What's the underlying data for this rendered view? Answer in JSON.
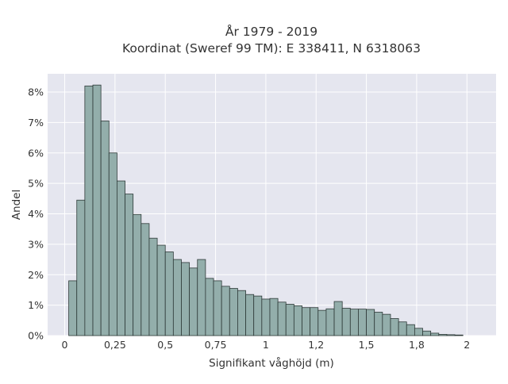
{
  "chart_data": {
    "type": "bar",
    "title_line1": "År 1979 - 2019",
    "title_line2": "Koordinat (Sweref 99 TM): E 338411, N 6318063",
    "xlabel": "Signifikant våghöjd (m)",
    "ylabel": "Andel",
    "xlim": [
      -0.085,
      2.145
    ],
    "ylim": [
      0,
      8.6
    ],
    "x_ticks": [
      {
        "value": 0,
        "label": "0"
      },
      {
        "value": 0.25,
        "label": "0,25"
      },
      {
        "value": 0.5,
        "label": "0,5"
      },
      {
        "value": 0.75,
        "label": "0,75"
      },
      {
        "value": 1,
        "label": "1"
      },
      {
        "value": 1.25,
        "label": "1,2"
      },
      {
        "value": 1.5,
        "label": "1,5"
      },
      {
        "value": 1.75,
        "label": "1,8"
      },
      {
        "value": 2,
        "label": "2"
      }
    ],
    "y_ticks": [
      {
        "value": 0,
        "label": "0%"
      },
      {
        "value": 1,
        "label": "1%"
      },
      {
        "value": 2,
        "label": "2%"
      },
      {
        "value": 3,
        "label": "3%"
      },
      {
        "value": 4,
        "label": "4%"
      },
      {
        "value": 5,
        "label": "5%"
      },
      {
        "value": 6,
        "label": "6%"
      },
      {
        "value": 7,
        "label": "7%"
      },
      {
        "value": 8,
        "label": "8%"
      }
    ],
    "bin_start": 0.02,
    "bin_width": 0.04,
    "values": [
      1.8,
      4.45,
      8.2,
      8.23,
      7.05,
      6.0,
      5.08,
      4.65,
      3.98,
      3.68,
      3.2,
      2.97,
      2.75,
      2.5,
      2.4,
      2.22,
      2.5,
      1.88,
      1.8,
      1.62,
      1.55,
      1.48,
      1.35,
      1.3,
      1.2,
      1.22,
      1.1,
      1.03,
      0.98,
      0.92,
      0.92,
      0.83,
      0.88,
      1.12,
      0.9,
      0.87,
      0.87,
      0.86,
      0.77,
      0.7,
      0.56,
      0.45,
      0.36,
      0.24,
      0.15,
      0.08,
      0.04,
      0.03,
      0.02
    ],
    "grid": true,
    "colors": {
      "plot_bg": "#e5e6ef",
      "grid": "#ffffff",
      "bar_fill": "#93aeab",
      "bar_stroke": "#2e3a38",
      "text": "#333333"
    }
  }
}
